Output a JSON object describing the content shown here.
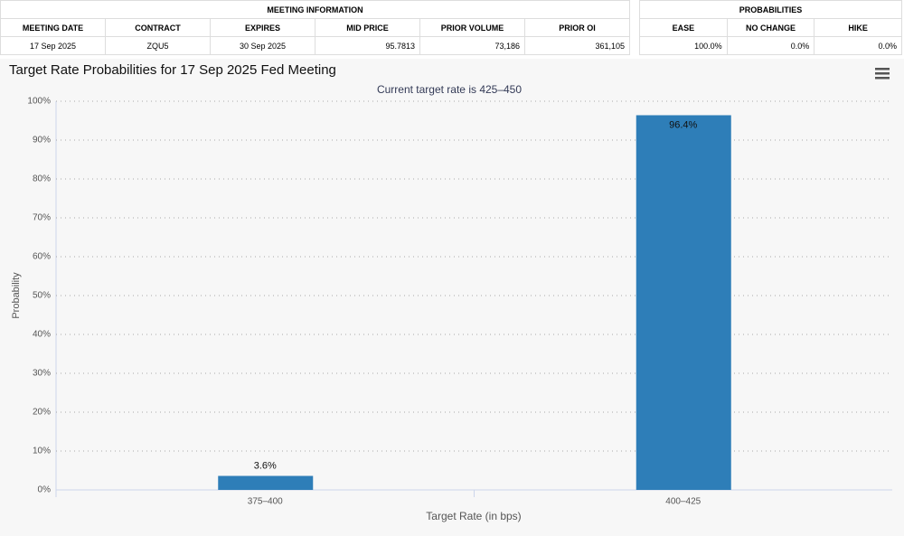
{
  "meeting_table": {
    "title": "MEETING INFORMATION",
    "columns": [
      "MEETING DATE",
      "CONTRACT",
      "EXPIRES",
      "MID PRICE",
      "PRIOR VOLUME",
      "PRIOR OI"
    ],
    "rows": [
      [
        "17 Sep 2025",
        "ZQU5",
        "30 Sep 2025",
        "95.7813",
        "73,186",
        "361,105"
      ]
    ]
  },
  "probabilities_table": {
    "title": "PROBABILITIES",
    "columns": [
      "EASE",
      "NO CHANGE",
      "HIKE"
    ],
    "rows": [
      [
        "100.0%",
        "0.0%",
        "0.0%"
      ]
    ]
  },
  "chart_data": {
    "type": "bar",
    "title": "Target Rate Probabilities for 17 Sep 2025 Fed Meeting",
    "subtitle": "Current target rate is 425–450",
    "y_label": "Probability",
    "x_label": "Target Rate (in bps)",
    "categories": [
      "375–400",
      "400–425"
    ],
    "values": [
      3.6,
      96.4
    ],
    "value_labels": [
      "3.6%",
      "96.4%"
    ],
    "color": "#2e7eb8",
    "ylim": [
      0,
      100
    ],
    "yticks": [
      {
        "value": 0,
        "label": "0%"
      },
      {
        "value": 10,
        "label": "10%"
      },
      {
        "value": 20,
        "label": "20%"
      },
      {
        "value": 30,
        "label": "30%"
      },
      {
        "value": 40,
        "label": "40%"
      },
      {
        "value": 50,
        "label": "50%"
      },
      {
        "value": 60,
        "label": "60%"
      },
      {
        "value": 70,
        "label": "70%"
      },
      {
        "value": 80,
        "label": "80%"
      },
      {
        "value": 90,
        "label": "90%"
      },
      {
        "value": 100,
        "label": "100%"
      }
    ],
    "grid": true
  }
}
